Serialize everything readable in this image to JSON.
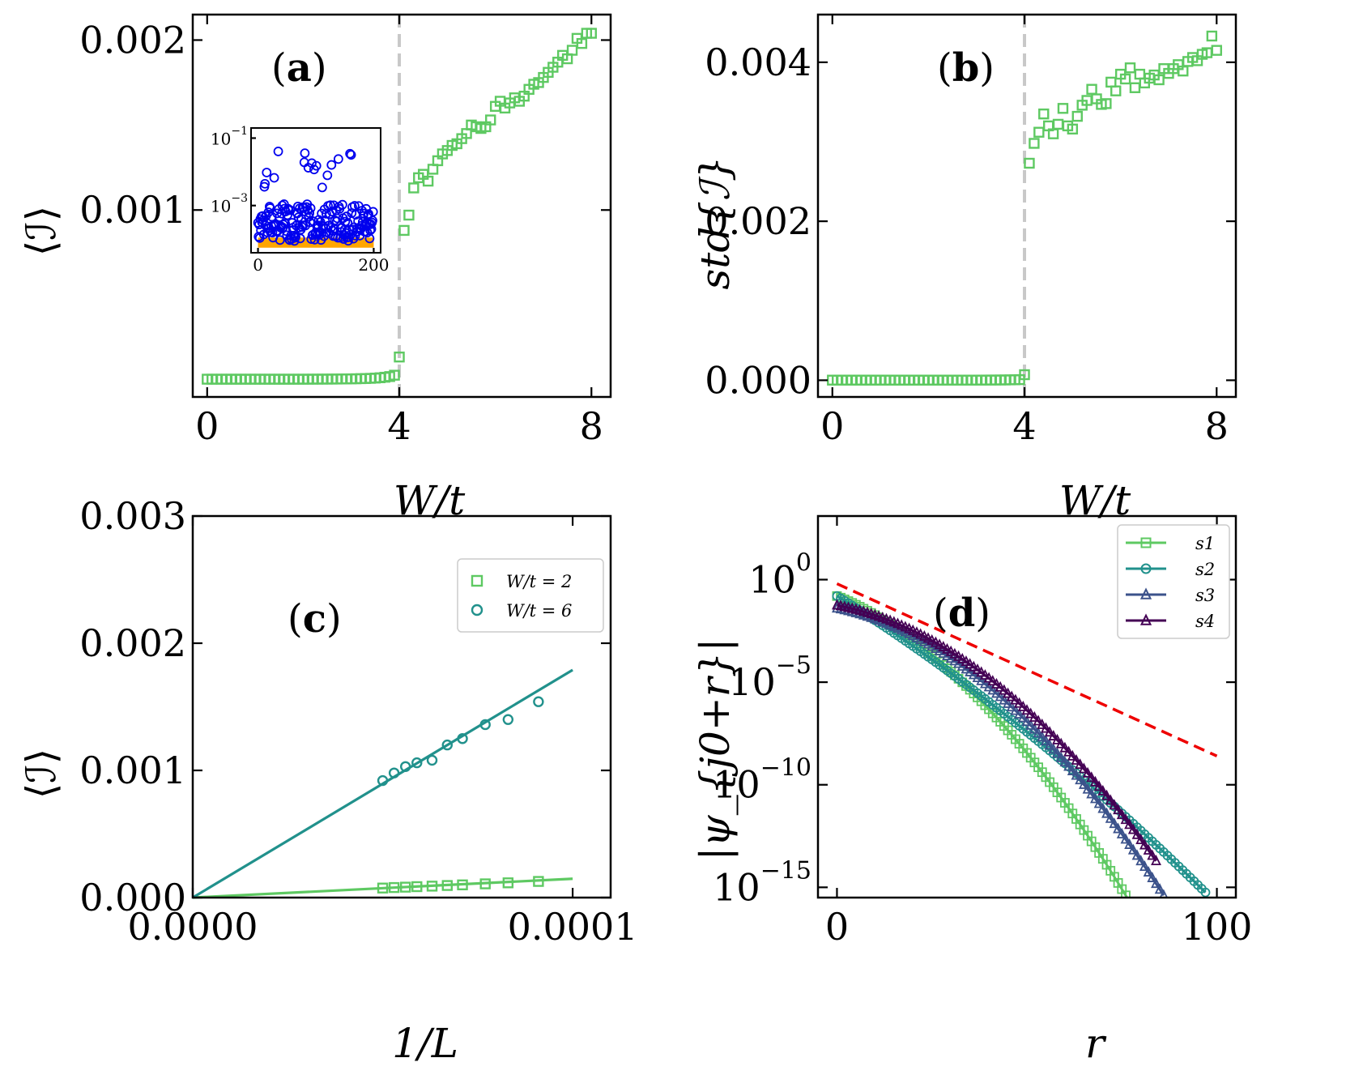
{
  "colors": {
    "green": "#5ec962",
    "teal": "#21918c",
    "slate": "#3b528b",
    "purple": "#440154",
    "blue": "#0000ee",
    "orange": "#ffa500",
    "red": "#ee0000",
    "gray": "#c8c8c8"
  },
  "chart_data": [
    {
      "id": "a",
      "type": "scatter",
      "panel_label": "a",
      "xlabel": "W/t",
      "ylabel": "⟨ℐ⟩",
      "xlim": [
        -0.3,
        8.4
      ],
      "ylim": [
        -0.0001,
        0.00215
      ],
      "xticks": [
        "0",
        "4",
        "8"
      ],
      "yticks": [
        "0.001",
        "0.002"
      ],
      "vline_x": 4.0,
      "series": [
        {
          "marker": "square",
          "color_key": "green",
          "x": [
            0.0,
            0.1,
            0.2,
            0.3,
            0.4,
            0.5,
            0.6,
            0.7,
            0.8,
            0.9,
            1.0,
            1.1,
            1.2,
            1.3,
            1.4,
            1.5,
            1.6,
            1.7,
            1.8,
            1.9,
            2.0,
            2.1,
            2.2,
            2.3,
            2.4,
            2.5,
            2.6,
            2.7,
            2.8,
            2.9,
            3.0,
            3.1,
            3.2,
            3.3,
            3.4,
            3.5,
            3.6,
            3.7,
            3.8,
            3.9,
            4.0,
            4.1,
            4.2,
            4.3,
            4.4,
            4.5,
            4.6,
            4.7,
            4.8,
            4.9,
            5.0,
            5.1,
            5.2,
            5.3,
            5.4,
            5.5,
            5.6,
            5.7,
            5.8,
            5.9,
            6.0,
            6.1,
            6.2,
            6.3,
            6.4,
            6.5,
            6.6,
            6.7,
            6.8,
            6.9,
            7.0,
            7.1,
            7.2,
            7.3,
            7.4,
            7.5,
            7.6,
            7.7,
            7.8,
            7.9,
            8.0
          ],
          "y": [
            4.5e-06,
            4.5e-06,
            4.5e-06,
            4.5e-06,
            4.5e-06,
            4.5e-06,
            4.5e-06,
            4.5e-06,
            4.5e-06,
            4.5e-06,
            4.5e-06,
            4.5e-06,
            4.5e-06,
            4.5e-06,
            4.5e-06,
            4.5e-06,
            4.5e-06,
            4.5e-06,
            4.5e-06,
            4.5e-06,
            4.5e-06,
            4.6e-06,
            4.7e-06,
            4.8e-06,
            4.9e-06,
            5e-06,
            5.2e-06,
            5.4e-06,
            5.7e-06,
            6e-06,
            6.5e-06,
            7e-06,
            7.7e-06,
            8.5e-06,
            9.5e-06,
            1.1e-05,
            1.3e-05,
            1.6e-05,
            2e-05,
            2.8e-05,
            0.000135,
            0.00088,
            0.00097,
            0.00113,
            0.00119,
            0.00121,
            0.00117,
            0.00124,
            0.00129,
            0.00133,
            0.00135,
            0.00138,
            0.00139,
            0.00142,
            0.00145,
            0.0015,
            0.00149,
            0.00148,
            0.00149,
            0.00153,
            0.00161,
            0.00164,
            0.0016,
            0.00163,
            0.00166,
            0.00164,
            0.00167,
            0.00171,
            0.00174,
            0.00175,
            0.00178,
            0.00181,
            0.00184,
            0.00187,
            0.00191,
            0.00189,
            0.00194,
            0.00201,
            0.00198,
            0.00204,
            0.00204
          ]
        }
      ],
      "inset": {
        "type": "scatter",
        "xticks": [
          "0",
          "200"
        ],
        "yticks": [
          "10",
          "10"
        ],
        "ytick_exps": [
          "−1",
          "−3"
        ],
        "xlim": [
          -12,
          212
        ],
        "log_ylim": [
          -4.4,
          -0.7
        ],
        "orange_band_log": [
          -4.25,
          -3.95
        ],
        "n_points": 200
      }
    },
    {
      "id": "b",
      "type": "scatter",
      "panel_label": "b",
      "xlabel": "W/t",
      "ylabel": "std{ℐ}",
      "xlim": [
        -0.3,
        8.4
      ],
      "ylim": [
        -0.00021,
        0.0046
      ],
      "xticks": [
        "0",
        "4",
        "8"
      ],
      "yticks": [
        "0.000",
        "0.002",
        "0.004"
      ],
      "vline_x": 4.0,
      "series": [
        {
          "marker": "square",
          "color_key": "green",
          "x": [
            0.0,
            0.1,
            0.2,
            0.3,
            0.4,
            0.5,
            0.6,
            0.7,
            0.8,
            0.9,
            1.0,
            1.1,
            1.2,
            1.3,
            1.4,
            1.5,
            1.6,
            1.7,
            1.8,
            1.9,
            2.0,
            2.1,
            2.2,
            2.3,
            2.4,
            2.5,
            2.6,
            2.7,
            2.8,
            2.9,
            3.0,
            3.1,
            3.2,
            3.3,
            3.4,
            3.5,
            3.6,
            3.7,
            3.8,
            3.9,
            4.0,
            4.1,
            4.2,
            4.3,
            4.4,
            4.5,
            4.6,
            4.7,
            4.8,
            4.9,
            5.0,
            5.1,
            5.2,
            5.3,
            5.4,
            5.5,
            5.6,
            5.7,
            5.8,
            5.9,
            6.0,
            6.1,
            6.2,
            6.3,
            6.4,
            6.5,
            6.6,
            6.7,
            6.8,
            6.9,
            7.0,
            7.1,
            7.2,
            7.3,
            7.4,
            7.5,
            7.6,
            7.7,
            7.8,
            7.9,
            8.0
          ],
          "y": [
            1.5e-06,
            1.5e-06,
            1.5e-06,
            1.5e-06,
            1.5e-06,
            1.5e-06,
            1.5e-06,
            1.5e-06,
            1.5e-06,
            1.5e-06,
            1.5e-06,
            1.5e-06,
            1.5e-06,
            1.5e-06,
            1.5e-06,
            1.5e-06,
            1.5e-06,
            1.5e-06,
            1.5e-06,
            1.5e-06,
            1.5e-06,
            1.5e-06,
            1.5e-06,
            1.5e-06,
            1.5e-06,
            1.6e-06,
            1.6e-06,
            1.7e-06,
            1.8e-06,
            1.9e-06,
            2e-06,
            2.2e-06,
            2.4e-06,
            2.7e-06,
            3e-06,
            3.5e-06,
            4e-06,
            5e-06,
            6e-06,
            8e-06,
            7e-05,
            0.00273,
            0.00298,
            0.00312,
            0.00335,
            0.0032,
            0.0031,
            0.00322,
            0.00342,
            0.0032,
            0.00316,
            0.00332,
            0.00346,
            0.00352,
            0.00366,
            0.00354,
            0.00347,
            0.00348,
            0.00375,
            0.00364,
            0.00385,
            0.00379,
            0.00393,
            0.00368,
            0.00385,
            0.00374,
            0.0038,
            0.00384,
            0.00378,
            0.00392,
            0.00386,
            0.00392,
            0.00397,
            0.00389,
            0.00401,
            0.00406,
            0.00402,
            0.0041,
            0.00412,
            0.00433,
            0.00415
          ]
        }
      ]
    },
    {
      "id": "c",
      "type": "scatter",
      "panel_label": "c",
      "xlabel": "1/L",
      "ylabel": "⟨ℐ⟩",
      "xlim": [
        0.0,
        0.00011
      ],
      "ylim": [
        0.0,
        0.003
      ],
      "xticks": [
        "0.0000",
        "0.0001"
      ],
      "yticks": [
        "0.000",
        "0.001",
        "0.002",
        "0.003"
      ],
      "series": [
        {
          "name": "W/t = 2",
          "marker": "square",
          "color_key": "green",
          "x": [
            5e-05,
            5.3e-05,
            5.6e-05,
            5.9e-05,
            6.3e-05,
            6.7e-05,
            7.1e-05,
            7.7e-05,
            8.3e-05,
            9.1e-05
          ],
          "y": [
            7.5e-05,
            7.9e-05,
            8.2e-05,
            8.6e-05,
            9e-05,
            9.5e-05,
            0.0001,
            0.000108,
            0.000116,
            0.000127
          ],
          "fit_x": [
            0.0,
            0.0001
          ],
          "fit_y": [
            0.0,
            0.000148
          ]
        },
        {
          "name": "W/t = 6",
          "marker": "circle",
          "color_key": "teal",
          "x": [
            5e-05,
            5.3e-05,
            5.6e-05,
            5.9e-05,
            6.3e-05,
            6.7e-05,
            7.1e-05,
            7.7e-05,
            8.3e-05,
            9.1e-05
          ],
          "y": [
            0.00092,
            0.00098,
            0.00103,
            0.00106,
            0.00108,
            0.0012,
            0.00125,
            0.00136,
            0.0014,
            0.00154
          ],
          "fit_x": [
            0.0,
            0.0001
          ],
          "fit_y": [
            0.0,
            0.00179
          ]
        }
      ],
      "legend": {
        "placement": "top-right"
      }
    },
    {
      "id": "d",
      "type": "line",
      "panel_label": "d",
      "xlabel": "r",
      "ylabel": "|ψ_{j0+r}|",
      "xlim": [
        -5,
        105
      ],
      "log_ylim": [
        -15.5,
        3.1
      ],
      "xticks": [
        "0",
        "100"
      ],
      "yticks": [
        "10",
        "10",
        "10",
        "10"
      ],
      "ytick_exps": [
        "0",
        "−5",
        "−10",
        "−15"
      ],
      "ytick_values": [
        0,
        -5,
        -10,
        -15
      ],
      "dashed_line": {
        "color_key": "red",
        "x": [
          0,
          100
        ],
        "log_y": [
          -0.2,
          -8.6
        ]
      },
      "series": [
        {
          "name": "s1",
          "marker": "square",
          "color_key": "green",
          "log_y0": -0.8,
          "curv": 0.0015,
          "slope": 0.078,
          "r_max": 77
        },
        {
          "name": "s2",
          "marker": "circle",
          "color_key": "teal",
          "log_y0": -0.8,
          "curv": 0.00035,
          "slope": 0.115,
          "r_max": 97
        },
        {
          "name": "s3",
          "marker": "triangle",
          "color_key": "slate",
          "log_y0": -1.4,
          "curv": 0.00145,
          "slope": 0.038,
          "r_max": 86
        },
        {
          "name": "s4",
          "marker": "triangle",
          "color_key": "purple",
          "log_y0": -1.25,
          "curv": 0.00135,
          "slope": 0.035,
          "r_max": 84
        }
      ],
      "legend": {
        "placement": "top-right"
      }
    }
  ]
}
